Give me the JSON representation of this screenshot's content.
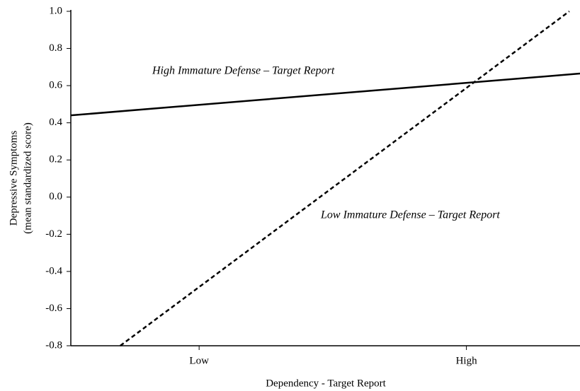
{
  "chart_data": {
    "type": "line",
    "xlabel": "Dependency - Target Report",
    "ylabel": [
      "Depressive Symptoms",
      "(mean standardized score)"
    ],
    "xlim": [
      -1.96,
      1.85
    ],
    "xticks": [
      {
        "value": -1,
        "label": "Low"
      },
      {
        "value": 1,
        "label": "High"
      }
    ],
    "ylim": [
      -0.8,
      1.0
    ],
    "yticks": [
      {
        "value": 1.0,
        "label": "1.0"
      },
      0.8,
      0.6,
      0.4,
      0.2,
      {
        "value": 0.0,
        "label": "0.0"
      },
      -0.2,
      -0.4,
      -0.6,
      -0.8
    ],
    "series": [
      {
        "name": "High Immature Defense – Target Report",
        "color": "#000000",
        "dashed": false,
        "x": [
          -1.96,
          1.85
        ],
        "values": [
          0.44,
          0.665
        ]
      },
      {
        "name": "Low Immature Defense – Target Report",
        "color": "#000000",
        "dashed": true,
        "x": [
          -1.59,
          1.77
        ],
        "values": [
          -0.8,
          1.0
        ]
      }
    ]
  }
}
